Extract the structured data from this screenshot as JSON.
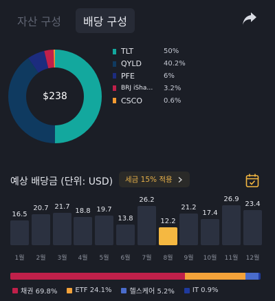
{
  "tabs": [
    {
      "label": "자산 구성",
      "active": false
    },
    {
      "label": "배당 구성",
      "active": true
    }
  ],
  "header": {
    "share_icon": "share-icon"
  },
  "portfolio": {
    "total": "$238",
    "holdings": [
      {
        "name": "TLT",
        "percent": "50%",
        "value": 50,
        "color": "#13a89e"
      },
      {
        "name": "QYLD",
        "percent": "40.2%",
        "value": 40.2,
        "color": "#0f3a60"
      },
      {
        "name": "PFE",
        "percent": "6%",
        "value": 6,
        "color": "#1c2c7e"
      },
      {
        "name": "BRJ iSha…",
        "percent": "3.2%",
        "value": 3.2,
        "color": "#c0204a"
      },
      {
        "name": "CSCO",
        "percent": "0.6%",
        "value": 0.6,
        "color": "#f39a31"
      }
    ]
  },
  "dividends": {
    "title": "예상 배당금 (단위: USD)",
    "tax_badge": "세금 15% 적용",
    "calendar_icon": "calendar-icon"
  },
  "chart_data": {
    "type": "bar",
    "categories": [
      "1월",
      "2월",
      "3월",
      "4월",
      "5월",
      "6월",
      "7월",
      "8월",
      "9월",
      "10월",
      "11월",
      "12월"
    ],
    "values": [
      16.5,
      20.7,
      21.7,
      18.8,
      19.7,
      13.8,
      26.2,
      12.2,
      21.2,
      17.4,
      26.9,
      23.4
    ],
    "value_labels": [
      "16.5",
      "20.7",
      "21.7",
      "18.8",
      "19.7",
      "13.8",
      "26.2",
      "12.2",
      "21.2",
      "17.4",
      "26.9",
      "23.4"
    ],
    "highlight_index": 7,
    "colors": {
      "bar": "#2b3140",
      "highlight": "#f5b841"
    }
  },
  "sectors": [
    {
      "label": "채권 69.8%",
      "value": 69.8,
      "color": "#c0204a"
    },
    {
      "label": "ETF 24.1%",
      "value": 24.1,
      "color": "#f3a23a"
    },
    {
      "label": "헬스케어 5.2%",
      "value": 5.2,
      "color": "#4a6ccc"
    },
    {
      "label": "IT 0.9%",
      "value": 0.9,
      "color": "#1f3a9e"
    }
  ]
}
